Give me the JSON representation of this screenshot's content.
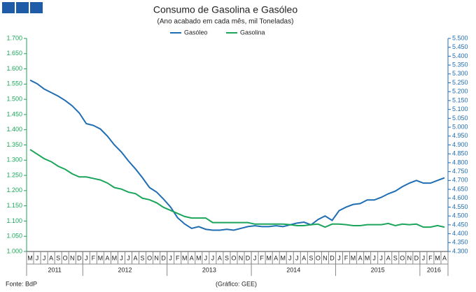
{
  "chart_data": {
    "type": "line",
    "title": "Consumo de Gasolina e Gasóleo",
    "subtitle": "(Ano acabado em cada mês, mil Toneladas)",
    "source": "Fonte: BdP",
    "credit": "(Gráfico: GEE)",
    "legend": "top",
    "categories": [
      "M",
      "J",
      "J",
      "A",
      "S",
      "O",
      "N",
      "D",
      "J",
      "F",
      "M",
      "A",
      "M",
      "J",
      "J",
      "A",
      "S",
      "O",
      "N",
      "D",
      "J",
      "F",
      "M",
      "A",
      "M",
      "J",
      "J",
      "A",
      "S",
      "O",
      "N",
      "D",
      "J",
      "F",
      "M",
      "A",
      "M",
      "J",
      "J",
      "A",
      "S",
      "O",
      "N",
      "D",
      "J",
      "F",
      "M",
      "A",
      "M",
      "J",
      "J",
      "A",
      "S",
      "O",
      "N",
      "D",
      "J",
      "F",
      "M",
      "A"
    ],
    "year_groups": [
      {
        "label": "2011",
        "count": 8
      },
      {
        "label": "2012",
        "count": 12
      },
      {
        "label": "2013",
        "count": 12
      },
      {
        "label": "2014",
        "count": 12
      },
      {
        "label": "2015",
        "count": 12
      },
      {
        "label": "2016",
        "count": 4
      }
    ],
    "series": [
      {
        "name": "Gasóleo",
        "color": "#1f6db3",
        "axis": "y2",
        "values": [
          5265,
          5245,
          5215,
          5195,
          5175,
          5150,
          5120,
          5080,
          5020,
          5010,
          4990,
          4950,
          4900,
          4860,
          4810,
          4765,
          4715,
          4660,
          4635,
          4595,
          4550,
          4490,
          4455,
          4430,
          4440,
          4425,
          4420,
          4420,
          4425,
          4420,
          4430,
          4440,
          4445,
          4440,
          4440,
          4445,
          4440,
          4450,
          4460,
          4465,
          4450,
          4480,
          4500,
          4475,
          4530,
          4550,
          4565,
          4570,
          4590,
          4590,
          4605,
          4625,
          4640,
          4665,
          4685,
          4700,
          4685,
          4685,
          4700,
          4715
        ]
      },
      {
        "name": "Gasolina",
        "color": "#1ba55a",
        "values": [
          1335,
          1320,
          1305,
          1295,
          1280,
          1270,
          1255,
          1245,
          1245,
          1240,
          1235,
          1225,
          1210,
          1205,
          1195,
          1190,
          1175,
          1170,
          1160,
          1145,
          1135,
          1125,
          1115,
          1110,
          1110,
          1110,
          1095,
          1095,
          1095,
          1095,
          1095,
          1095,
          1090,
          1090,
          1090,
          1090,
          1090,
          1088,
          1085,
          1085,
          1088,
          1090,
          1080,
          1090,
          1090,
          1088,
          1085,
          1085,
          1088,
          1088,
          1088,
          1092,
          1085,
          1090,
          1088,
          1090,
          1080,
          1080,
          1085,
          1080
        ]
      }
    ],
    "ylim": [
      1000,
      1700
    ],
    "yticks": [
      {
        "value": 1000,
        "label": "1.000"
      },
      {
        "value": 1050,
        "label": "1.050"
      },
      {
        "value": 1100,
        "label": "1.100"
      },
      {
        "value": 1150,
        "label": "1.150"
      },
      {
        "value": 1200,
        "label": "1.200"
      },
      {
        "value": 1250,
        "label": "1.250"
      },
      {
        "value": 1300,
        "label": "1.300"
      },
      {
        "value": 1350,
        "label": "1.350"
      },
      {
        "value": 1400,
        "label": "1.400"
      },
      {
        "value": 1450,
        "label": "1.450"
      },
      {
        "value": 1500,
        "label": "1.500"
      },
      {
        "value": 1550,
        "label": "1.550"
      },
      {
        "value": 1600,
        "label": "1.600"
      },
      {
        "value": 1650,
        "label": "1.650"
      },
      {
        "value": 1700,
        "label": "1.700"
      }
    ],
    "y2lim": [
      4300,
      5500
    ],
    "y2ticks": [
      {
        "value": 4300,
        "label": "4.300"
      },
      {
        "value": 4350,
        "label": "4.350"
      },
      {
        "value": 4400,
        "label": "4.400"
      },
      {
        "value": 4450,
        "label": "4.450"
      },
      {
        "value": 4500,
        "label": "4.500"
      },
      {
        "value": 4550,
        "label": "4.550"
      },
      {
        "value": 4600,
        "label": "4.600"
      },
      {
        "value": 4650,
        "label": "4.650"
      },
      {
        "value": 4700,
        "label": "4.700"
      },
      {
        "value": 4750,
        "label": "4.750"
      },
      {
        "value": 4800,
        "label": "4.800"
      },
      {
        "value": 4850,
        "label": "4.850"
      },
      {
        "value": 4900,
        "label": "4.900"
      },
      {
        "value": 4950,
        "label": "4.950"
      },
      {
        "value": 5000,
        "label": "5.000"
      },
      {
        "value": 5050,
        "label": "5.050"
      },
      {
        "value": 5100,
        "label": "5.100"
      },
      {
        "value": 5150,
        "label": "5.150"
      },
      {
        "value": 5200,
        "label": "5.200"
      },
      {
        "value": 5250,
        "label": "5.250"
      },
      {
        "value": 5300,
        "label": "5.300"
      },
      {
        "value": 5350,
        "label": "5.350"
      },
      {
        "value": 5400,
        "label": "5.400"
      },
      {
        "value": 5450,
        "label": "5.450"
      },
      {
        "value": 5500,
        "label": "5.500"
      }
    ],
    "grid": false
  }
}
